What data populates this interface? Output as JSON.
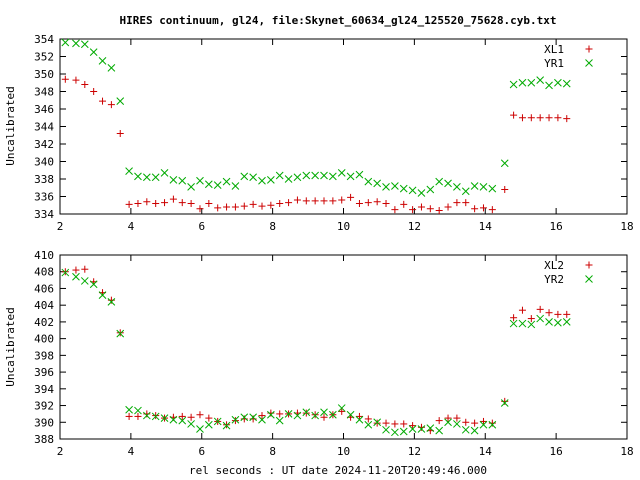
{
  "chart_data": [
    {
      "type": "scatter",
      "title": "HIRES continuum, gl24, file:Skynet_60634_gl24_125520_75628.cyb.txt",
      "xlabel": "",
      "ylabel": "Uncalibrated",
      "xlim": [
        2,
        18
      ],
      "ylim": [
        334,
        354
      ],
      "xticks": [
        2,
        4,
        6,
        8,
        10,
        12,
        14,
        16,
        18
      ],
      "yticks": [
        334,
        336,
        338,
        340,
        342,
        344,
        346,
        348,
        350,
        352,
        354
      ],
      "legend": "top-right",
      "series": [
        {
          "name": "XL1",
          "marker": "plus",
          "color": "#cc0000",
          "x": [
            2.15,
            2.45,
            2.7,
            2.95,
            3.2,
            3.45,
            3.7,
            3.95,
            4.2,
            4.45,
            4.7,
            4.95,
            5.2,
            5.45,
            5.7,
            5.95,
            6.2,
            6.45,
            6.7,
            6.95,
            7.2,
            7.45,
            7.7,
            7.95,
            8.2,
            8.45,
            8.7,
            8.95,
            9.2,
            9.45,
            9.7,
            9.95,
            10.2,
            10.45,
            10.7,
            10.95,
            11.2,
            11.45,
            11.7,
            11.95,
            12.2,
            12.45,
            12.7,
            12.95,
            13.2,
            13.45,
            13.7,
            13.95,
            14.2,
            14.55,
            14.8,
            15.05,
            15.3,
            15.55,
            15.8,
            16.05,
            16.3
          ],
          "y": [
            349.4,
            349.3,
            348.8,
            348.0,
            346.9,
            346.5,
            343.2,
            335.1,
            335.2,
            335.4,
            335.2,
            335.3,
            335.7,
            335.3,
            335.2,
            334.6,
            335.2,
            334.7,
            334.8,
            334.8,
            334.9,
            335.1,
            334.9,
            335.0,
            335.2,
            335.3,
            335.6,
            335.5,
            335.5,
            335.5,
            335.5,
            335.6,
            335.9,
            335.2,
            335.3,
            335.4,
            335.2,
            334.5,
            335.1,
            334.5,
            334.8,
            334.6,
            334.4,
            334.8,
            335.3,
            335.3,
            334.6,
            334.7,
            334.5,
            336.8,
            345.3,
            345.0,
            345.0,
            345.0,
            345.0,
            345.0,
            344.9
          ]
        },
        {
          "name": "YR1",
          "marker": "cross",
          "color": "#00aa00",
          "x": [
            2.15,
            2.45,
            2.7,
            2.95,
            3.2,
            3.45,
            3.7,
            3.95,
            4.2,
            4.45,
            4.7,
            4.95,
            5.2,
            5.45,
            5.7,
            5.95,
            6.2,
            6.45,
            6.7,
            6.95,
            7.2,
            7.45,
            7.7,
            7.95,
            8.2,
            8.45,
            8.7,
            8.95,
            9.2,
            9.45,
            9.7,
            9.95,
            10.2,
            10.45,
            10.7,
            10.95,
            11.2,
            11.45,
            11.7,
            11.95,
            12.2,
            12.45,
            12.7,
            12.95,
            13.2,
            13.45,
            13.7,
            13.95,
            14.2,
            14.55,
            14.8,
            15.05,
            15.3,
            15.55,
            15.8,
            16.05,
            16.3
          ],
          "y": [
            353.6,
            353.5,
            353.4,
            352.5,
            351.5,
            350.7,
            346.9,
            338.9,
            338.3,
            338.2,
            338.2,
            338.7,
            337.9,
            337.8,
            337.1,
            337.8,
            337.4,
            337.3,
            337.7,
            337.2,
            338.3,
            338.2,
            337.8,
            337.9,
            338.4,
            338.0,
            338.2,
            338.4,
            338.4,
            338.4,
            338.3,
            338.7,
            338.3,
            338.5,
            337.7,
            337.5,
            337.1,
            337.2,
            336.9,
            336.7,
            336.4,
            336.8,
            337.7,
            337.5,
            337.1,
            336.6,
            337.2,
            337.1,
            336.9,
            339.8,
            348.8,
            349.0,
            349.0,
            349.3,
            348.7,
            349.0,
            348.9
          ]
        }
      ]
    },
    {
      "type": "scatter",
      "title": "",
      "xlabel": "rel seconds : UT date 2024-11-20T20:49:46.000",
      "ylabel": "Uncalibrated",
      "xlim": [
        2,
        18
      ],
      "ylim": [
        388,
        410
      ],
      "xticks": [
        2,
        4,
        6,
        8,
        10,
        12,
        14,
        16,
        18
      ],
      "yticks": [
        388,
        390,
        392,
        394,
        396,
        398,
        400,
        402,
        404,
        406,
        408,
        410
      ],
      "legend": "top-right",
      "series": [
        {
          "name": "XL2",
          "marker": "plus",
          "color": "#cc0000",
          "x": [
            2.15,
            2.45,
            2.7,
            2.95,
            3.2,
            3.45,
            3.7,
            3.95,
            4.2,
            4.45,
            4.7,
            4.95,
            5.2,
            5.45,
            5.7,
            5.95,
            6.2,
            6.45,
            6.7,
            6.95,
            7.2,
            7.45,
            7.7,
            7.95,
            8.2,
            8.45,
            8.7,
            8.95,
            9.2,
            9.45,
            9.7,
            9.95,
            10.2,
            10.45,
            10.7,
            10.95,
            11.2,
            11.45,
            11.7,
            11.95,
            12.2,
            12.45,
            12.7,
            12.95,
            13.2,
            13.45,
            13.7,
            13.95,
            14.2,
            14.55,
            14.8,
            15.05,
            15.3,
            15.55,
            15.8,
            16.05,
            16.3
          ],
          "y": [
            408.0,
            408.2,
            408.3,
            406.8,
            405.5,
            404.6,
            400.7,
            390.7,
            390.7,
            391.0,
            390.8,
            390.5,
            390.6,
            390.7,
            390.6,
            390.9,
            390.5,
            390.1,
            389.7,
            390.2,
            390.4,
            390.4,
            390.8,
            391.1,
            391.0,
            391.0,
            391.1,
            391.1,
            390.9,
            390.6,
            390.9,
            391.3,
            390.6,
            390.7,
            390.4,
            389.9,
            389.9,
            389.8,
            389.8,
            389.6,
            389.4,
            389.0,
            390.2,
            390.5,
            390.5,
            390.0,
            389.9,
            390.1,
            389.9,
            392.5,
            402.5,
            403.4,
            402.4,
            403.5,
            403.1,
            402.9,
            402.9
          ]
        },
        {
          "name": "YR2",
          "marker": "cross",
          "color": "#00aa00",
          "x": [
            2.15,
            2.45,
            2.7,
            2.95,
            3.2,
            3.45,
            3.7,
            3.95,
            4.2,
            4.45,
            4.7,
            4.95,
            5.2,
            5.45,
            5.7,
            5.95,
            6.2,
            6.45,
            6.7,
            6.95,
            7.2,
            7.45,
            7.7,
            7.95,
            8.2,
            8.45,
            8.7,
            8.95,
            9.2,
            9.45,
            9.7,
            9.95,
            10.2,
            10.45,
            10.7,
            10.95,
            11.2,
            11.45,
            11.7,
            11.95,
            12.2,
            12.45,
            12.7,
            12.95,
            13.2,
            13.45,
            13.7,
            13.95,
            14.2,
            14.55,
            14.8,
            15.05,
            15.3,
            15.55,
            15.8,
            16.05,
            16.3
          ],
          "y": [
            407.9,
            407.4,
            406.9,
            406.5,
            405.2,
            404.4,
            400.6,
            391.5,
            391.4,
            390.8,
            390.7,
            390.5,
            390.3,
            390.2,
            389.8,
            389.2,
            389.7,
            390.1,
            389.6,
            390.3,
            390.6,
            390.6,
            390.3,
            390.9,
            390.2,
            391.0,
            390.8,
            391.2,
            390.8,
            391.2,
            390.9,
            391.7,
            390.9,
            390.3,
            389.7,
            390.0,
            389.1,
            388.8,
            388.9,
            389.2,
            389.2,
            389.3,
            389.0,
            390.0,
            389.8,
            389.1,
            389.0,
            389.7,
            389.7,
            392.3,
            401.8,
            401.8,
            401.7,
            402.4,
            402.0,
            401.9,
            402.0
          ]
        }
      ]
    }
  ]
}
